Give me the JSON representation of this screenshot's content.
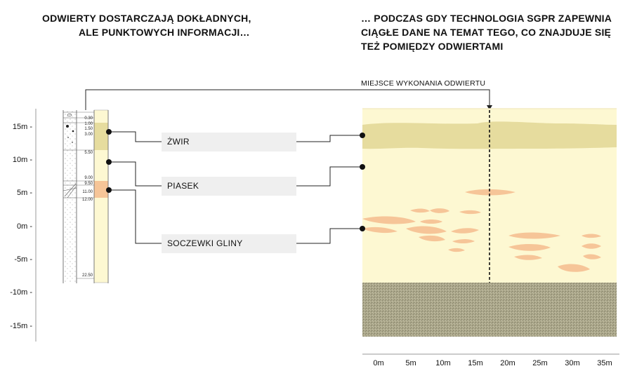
{
  "titles": {
    "left_line1": "ODWIERTY DOSTARCZAJĄ DOKŁADNYCH,",
    "left_line2": "ALE PUNKTOWYCH INFORMACJI…",
    "right_line1": "… PODCZAS GDY TECHNOLOGIA SGPR ZAPEWNIA",
    "right_line2": "CIĄGŁE DANE NA TEMAT TEGO, CO ZNAJDUJE SIĘ",
    "right_line3": "TEŻ POMIĘDZY ODWIERTAMI"
  },
  "drill_site_label": "MIEJSCE WYKONANIA ODWIERTU",
  "depth_axis": [
    "15m -",
    "10m -",
    "5m -",
    "0m -",
    "-5m -",
    "-10m -",
    "-15m -"
  ],
  "distance_axis": [
    "0m",
    "5m",
    "10m",
    "15m",
    "20m",
    "25m",
    "30m",
    "35m"
  ],
  "borehole_depths": [
    "0.30",
    "1.00",
    "1.50",
    "3.00",
    "5.50",
    "9.00",
    "9.50",
    "11.00",
    "12.00",
    "22.50"
  ],
  "layers": {
    "gravel": "ŻWIR",
    "sand": "PIASEK",
    "clay_lenses": "SOCZEWKI GLINY"
  },
  "colors": {
    "sand_background": "#fdf8d2",
    "gravel": "#e6dc9e",
    "clay": "#f6c598",
    "bedrock": "#aba78b"
  }
}
